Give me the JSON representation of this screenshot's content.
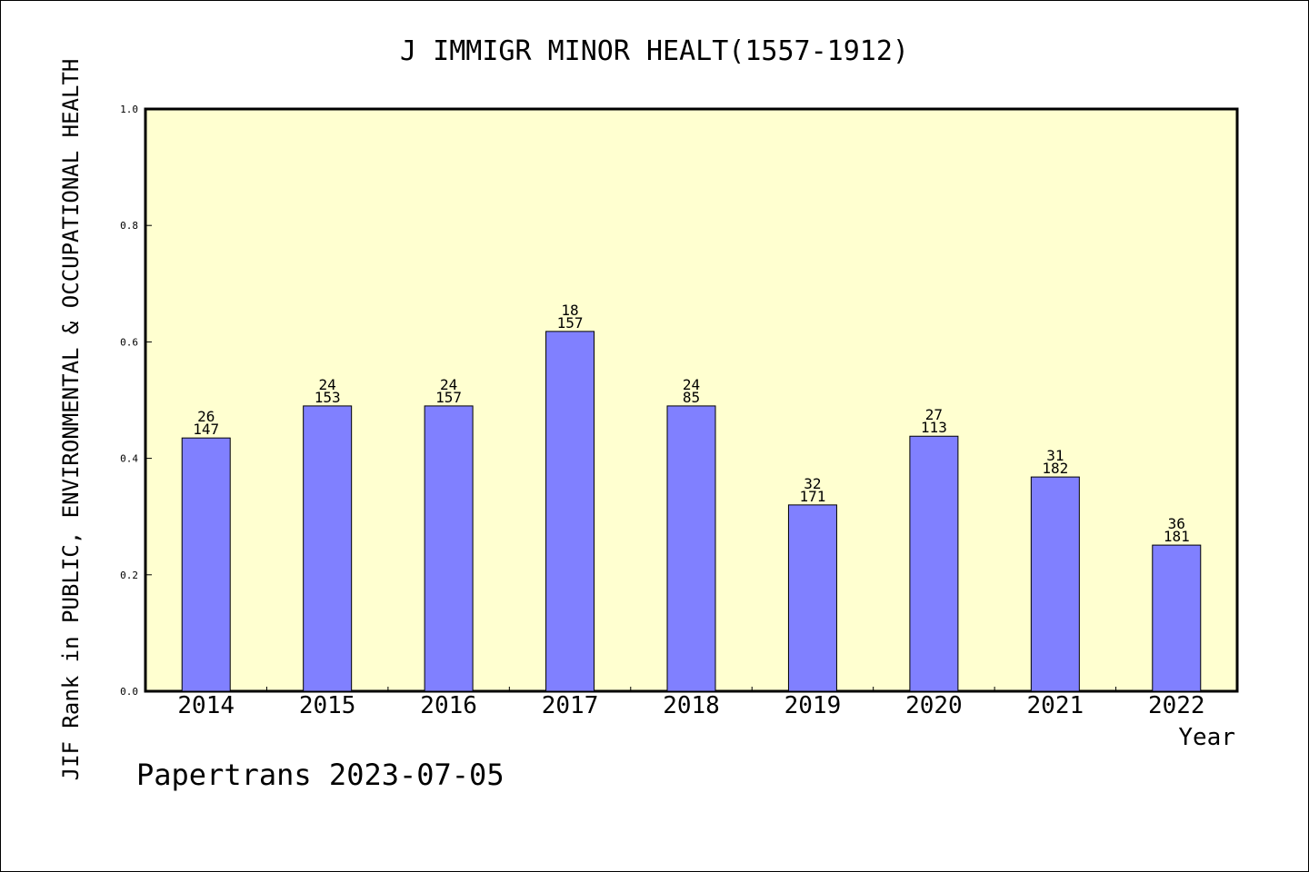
{
  "chart_data": {
    "type": "bar",
    "title": "J IMMIGR MINOR HEALT(1557-1912)",
    "xlabel": "Year",
    "ylabel": "JIF Rank in PUBLIC, ENVIRONMENTAL & OCCUPATIONAL HEALTH",
    "ylim": [
      0,
      1.0
    ],
    "yticks": [
      "0.0",
      "0.2",
      "0.4",
      "0.6",
      "0.8",
      "1.0"
    ],
    "categories": [
      "2014",
      "2015",
      "2016",
      "2017",
      "2018",
      "2019",
      "2020",
      "2021",
      "2022"
    ],
    "values": [
      0.435,
      0.49,
      0.49,
      0.618,
      0.49,
      0.32,
      0.438,
      0.368,
      0.251
    ],
    "ranks": [
      "26",
      "24",
      "24",
      "18",
      "24",
      "32",
      "27",
      "31",
      "36"
    ],
    "totals": [
      "147",
      "153",
      "157",
      "157",
      "85",
      "171",
      "113",
      "182",
      "181"
    ],
    "grid": false,
    "legend": "none",
    "colors": {
      "bar": "#8080ff",
      "plot_bg": "#ffffd0",
      "axis": "#000000"
    }
  },
  "footer": {
    "text": "Papertrans 2023-07-05"
  }
}
